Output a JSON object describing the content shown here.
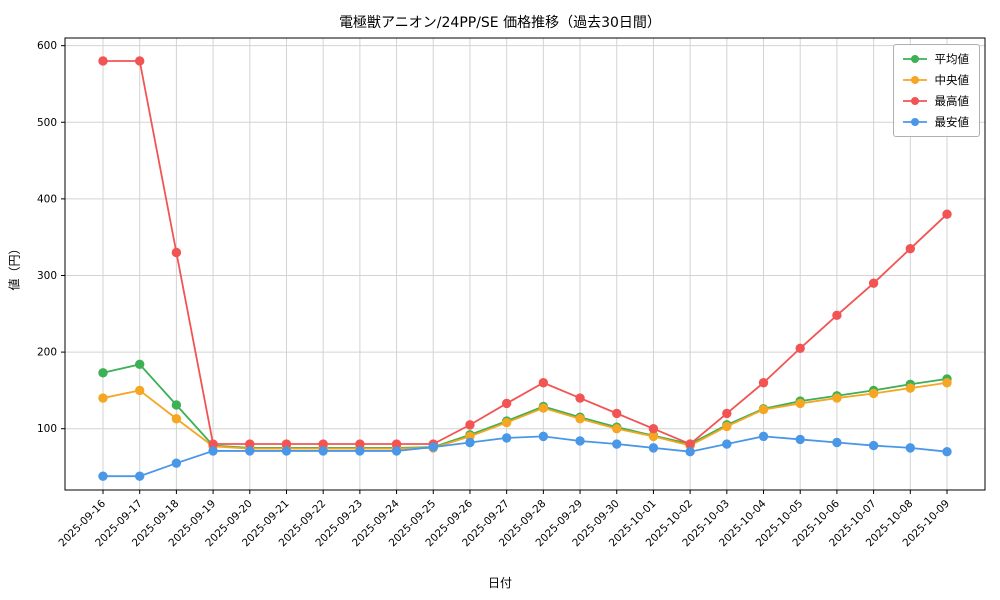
{
  "chart_data": {
    "type": "line",
    "title": "電極獣アニオン/24PP/SE 価格推移（過去30日間）",
    "xlabel": "日付",
    "ylabel": "値（円）",
    "ylim": [
      20,
      610
    ],
    "yticks": [
      100,
      200,
      300,
      400,
      500,
      600
    ],
    "grid": true,
    "legend_position": "top-right",
    "categories": [
      "2025-09-16",
      "2025-09-17",
      "2025-09-18",
      "2025-09-19",
      "2025-09-20",
      "2025-09-21",
      "2025-09-22",
      "2025-09-23",
      "2025-09-24",
      "2025-09-25",
      "2025-09-26",
      "2025-09-27",
      "2025-09-28",
      "2025-09-29",
      "2025-09-30",
      "2025-10-01",
      "2025-10-02",
      "2025-10-03",
      "2025-10-04",
      "2025-10-05",
      "2025-10-06",
      "2025-10-07",
      "2025-10-08",
      "2025-10-09"
    ],
    "series": [
      {
        "name": "平均値",
        "color": "#3cb054",
        "values": [
          173,
          184,
          131,
          78,
          75,
          75,
          75,
          75,
          75,
          76,
          92,
          110,
          129,
          115,
          102,
          91,
          80,
          105,
          126,
          136,
          143,
          150,
          158,
          165
        ]
      },
      {
        "name": "中央値",
        "color": "#f5a623",
        "values": [
          140,
          150,
          113,
          77,
          74,
          74,
          74,
          74,
          74,
          75,
          90,
          108,
          127,
          113,
          100,
          90,
          78,
          103,
          125,
          133,
          140,
          146,
          153,
          160
        ]
      },
      {
        "name": "最高値",
        "color": "#f25454",
        "values": [
          580,
          580,
          330,
          80,
          80,
          80,
          80,
          80,
          80,
          80,
          105,
          133,
          160,
          140,
          120,
          100,
          80,
          120,
          160,
          205,
          248,
          290,
          335,
          380
        ]
      },
      {
        "name": "最安値",
        "color": "#4a97e8",
        "values": [
          38,
          38,
          55,
          71,
          71,
          71,
          71,
          71,
          71,
          76,
          82,
          88,
          90,
          84,
          80,
          75,
          70,
          80,
          90,
          86,
          82,
          78,
          75,
          70
        ]
      }
    ]
  }
}
